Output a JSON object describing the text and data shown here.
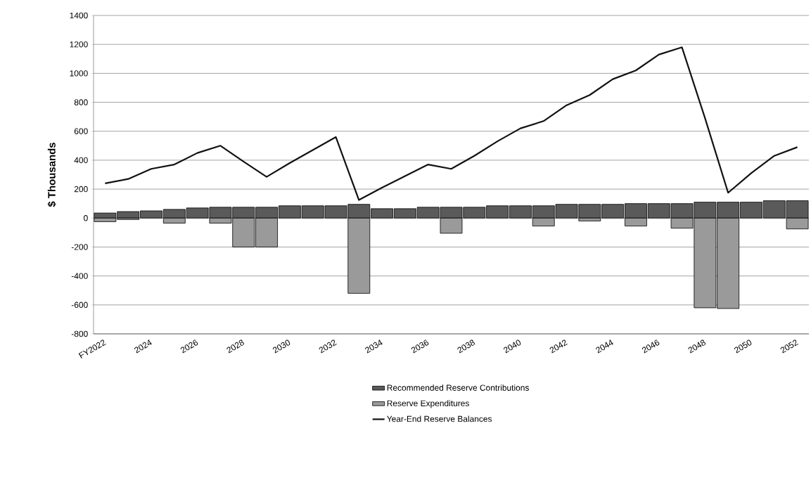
{
  "chart_data": {
    "type": "bar",
    "ylabel": "$ Thousands",
    "stacked": true,
    "categories": [
      "FY2022",
      null,
      "2024",
      null,
      "2026",
      null,
      "2028",
      null,
      "2030",
      null,
      "2032",
      null,
      "2034",
      null,
      "2036",
      null,
      "2038",
      null,
      "2040",
      null,
      "2042",
      null,
      "2044",
      null,
      "2046",
      null,
      "2048",
      null,
      "2050",
      null,
      "2052"
    ],
    "series": [
      {
        "name": "Recommended Reserve Contributions",
        "color": "#5a5a5a",
        "values": [
          35,
          45,
          50,
          60,
          70,
          75,
          75,
          75,
          85,
          85,
          85,
          95,
          65,
          65,
          75,
          75,
          75,
          85,
          85,
          85,
          95,
          95,
          95,
          100,
          100,
          100,
          110,
          110,
          110,
          120,
          120
        ]
      },
      {
        "name": "Reserve Expenditures",
        "color": "#9a9a9a",
        "values": [
          -25,
          -10,
          null,
          -35,
          null,
          -35,
          -200,
          -200,
          null,
          null,
          null,
          -520,
          null,
          null,
          null,
          -105,
          null,
          null,
          null,
          -55,
          null,
          -20,
          null,
          -55,
          null,
          -70,
          -620,
          -625,
          null,
          null,
          -75
        ]
      },
      {
        "name": "Year-End Reserve Balances",
        "type": "line",
        "color": "#111111",
        "values": [
          240,
          270,
          340,
          370,
          450,
          500,
          390,
          285,
          380,
          470,
          560,
          125,
          210,
          290,
          370,
          340,
          430,
          530,
          620,
          670,
          780,
          850,
          960,
          1020,
          1130,
          1180,
          690,
          175,
          310,
          430,
          490
        ]
      }
    ],
    "ylim": [
      -800,
      1400
    ],
    "yticks": [
      -800,
      -600,
      -400,
      -200,
      0,
      200,
      400,
      600,
      800,
      1000,
      1200,
      1400
    ],
    "grid": "y",
    "legend": "bottom",
    "marker": "none",
    "line_style": "solid"
  }
}
